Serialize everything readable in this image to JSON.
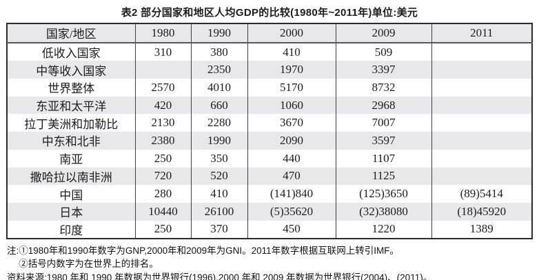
{
  "title": "表2 部分国家和地区人均GDP的比较(1980年~2011年)单位:美元",
  "table": {
    "columns": [
      "国家/地区",
      "1980",
      "1990",
      "2000",
      "2009",
      "2011"
    ],
    "rows": [
      [
        "低收入国家",
        "310",
        "380",
        "410",
        "509",
        ""
      ],
      [
        "中等收入国家",
        "",
        "2350",
        "1970",
        "3397",
        ""
      ],
      [
        "世界整体",
        "2570",
        "4010",
        "5170",
        "8732",
        ""
      ],
      [
        "东亚和太平洋",
        "420",
        "660",
        "1060",
        "2968",
        ""
      ],
      [
        "拉丁美洲和加勒比",
        "2130",
        "2280",
        "3670",
        "7007",
        ""
      ],
      [
        "中东和北非",
        "2380",
        "1990",
        "2090",
        "3597",
        ""
      ],
      [
        "南亚",
        "250",
        "350",
        "440",
        "1107",
        ""
      ],
      [
        "撒哈拉以南非洲",
        "720",
        "520",
        "470",
        "1125",
        ""
      ],
      [
        "中国",
        "280",
        "410",
        "(141)840",
        "(125)3650",
        "(89)5414"
      ],
      [
        "日本",
        "10440",
        "26100",
        "(5)35620",
        "(32)38080",
        "(18)45920"
      ],
      [
        "印度",
        "250",
        "370",
        "450",
        "1220",
        "1389"
      ]
    ]
  },
  "notes": {
    "label": "注:",
    "line1": "①1980年和1990年数字为GNP,2000年和2009年为GNI。2011年数字根据互联网上转引IMF。",
    "line2": "②括号内数字为在世界上的排名。",
    "source": "资料来源:1980 年和 1990 年数据为世界银行(1996),2000 年和 2009 年数据为世界银行(2004)、(2011)。"
  },
  "colors": {
    "row_shade": "#e8e8ea",
    "border_dark": "#2b2b2b",
    "border_thin": "#3f3f3f",
    "text": "#1c1c1c"
  }
}
